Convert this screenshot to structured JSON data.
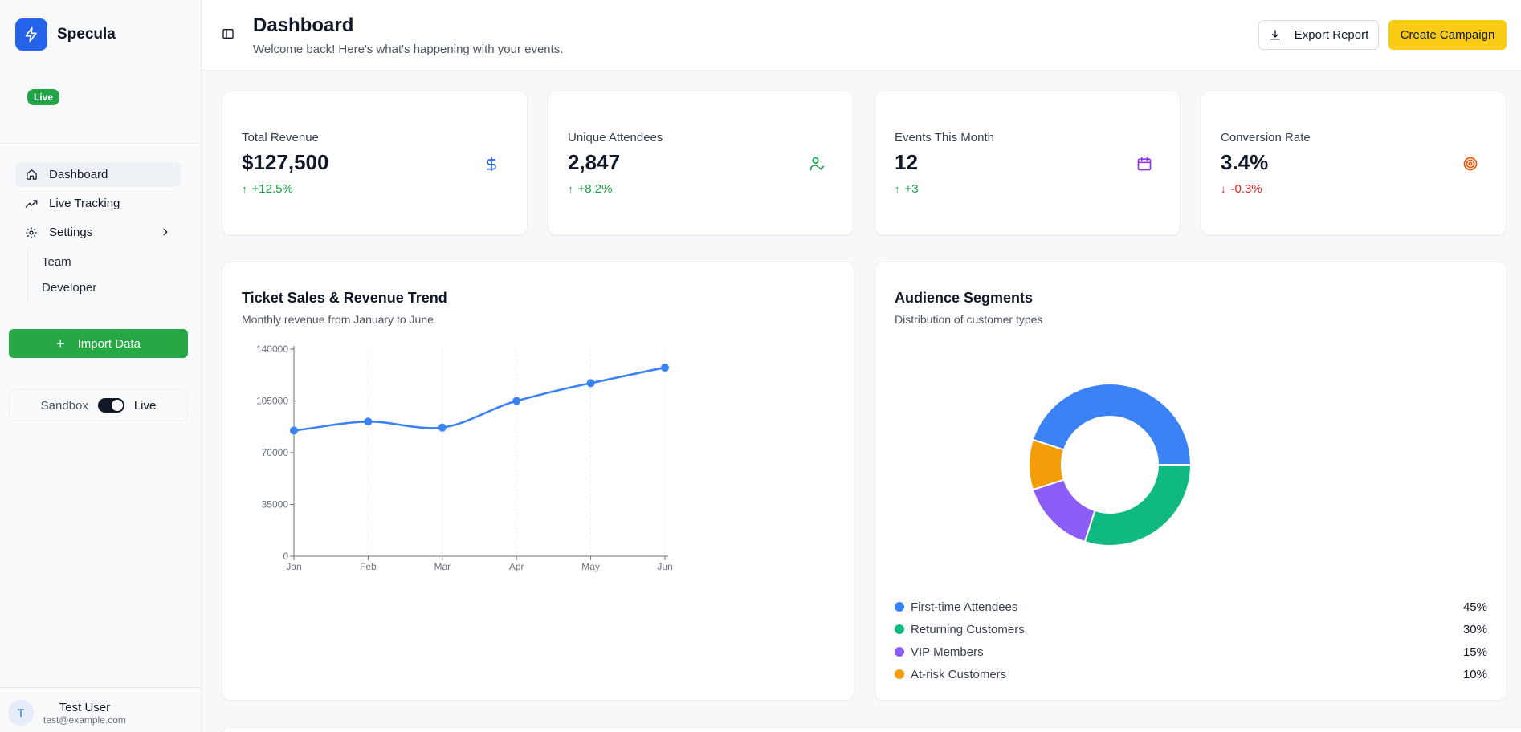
{
  "brand": {
    "name": "Specula",
    "status_badge": "Live"
  },
  "sidebar": {
    "items": [
      {
        "label": "Dashboard",
        "icon": "home-icon",
        "active": true
      },
      {
        "label": "Live Tracking",
        "icon": "trending-up-icon"
      },
      {
        "label": "Settings",
        "icon": "gear-icon",
        "expanded": true
      }
    ],
    "settings_children": [
      "Team",
      "Developer"
    ],
    "import_label": "Import Data",
    "mode_off_label": "Sandbox",
    "mode_on_label": "Live",
    "mode_live_enabled": true
  },
  "user": {
    "initial": "T",
    "name": "Test User",
    "email": "test@example.com"
  },
  "header": {
    "title": "Dashboard",
    "subtitle": "Welcome back! Here's what's happening with your events.",
    "export_label": "Export Report",
    "create_label": "Create Campaign"
  },
  "stats": [
    {
      "label": "Total Revenue",
      "value": "$127,500",
      "delta": "+12.5%",
      "direction": "up",
      "icon": "dollar-icon",
      "icon_color": "#2563eb",
      "icon_bg": "#e0e9fd"
    },
    {
      "label": "Unique Attendees",
      "value": "2,847",
      "delta": "+8.2%",
      "direction": "up",
      "icon": "user-check-icon",
      "icon_color": "#16a34a",
      "icon_bg": "#dcfce7"
    },
    {
      "label": "Events This Month",
      "value": "12",
      "delta": "+3",
      "direction": "up",
      "icon": "calendar-icon",
      "icon_color": "#9333ea",
      "icon_bg": "#f3e8ff"
    },
    {
      "label": "Conversion Rate",
      "value": "3.4%",
      "delta": "-0.3%",
      "direction": "down",
      "icon": "target-icon",
      "icon_color": "#ea580c",
      "icon_bg": "#ffedd5"
    }
  ],
  "colors": {
    "up": "#16a34a",
    "down": "#dc2626",
    "line": "#3b82f6",
    "accent": "#facc15",
    "green_button": "#27a844"
  },
  "revenue_panel": {
    "title": "Ticket Sales & Revenue Trend",
    "subtitle": "Monthly revenue from January to June"
  },
  "segments_panel": {
    "title": "Audience Segments",
    "subtitle": "Distribution of customer types"
  },
  "chart_data": [
    {
      "type": "line",
      "categories": [
        "Jan",
        "Feb",
        "Mar",
        "Apr",
        "May",
        "Jun"
      ],
      "series": [
        {
          "values": [
            85000,
            91000,
            87000,
            105000,
            117000,
            127500
          ]
        }
      ],
      "yticks": [
        "0",
        "35000",
        "70000",
        "105000",
        "140000"
      ],
      "ylim": [
        0,
        140000
      ],
      "grid": "vertical dashed",
      "color": "#3b82f6"
    },
    {
      "type": "pie",
      "style": "donut",
      "slices": [
        {
          "label": "First-time Attendees",
          "value": 45,
          "display": "45%",
          "color": "#3b82f6"
        },
        {
          "label": "Returning Customers",
          "value": 30,
          "display": "30%",
          "color": "#10b981"
        },
        {
          "label": "VIP Members",
          "value": 15,
          "display": "15%",
          "color": "#8b5cf6"
        },
        {
          "label": "At-risk Customers",
          "value": 10,
          "display": "10%",
          "color": "#f59e0b"
        }
      ]
    }
  ]
}
